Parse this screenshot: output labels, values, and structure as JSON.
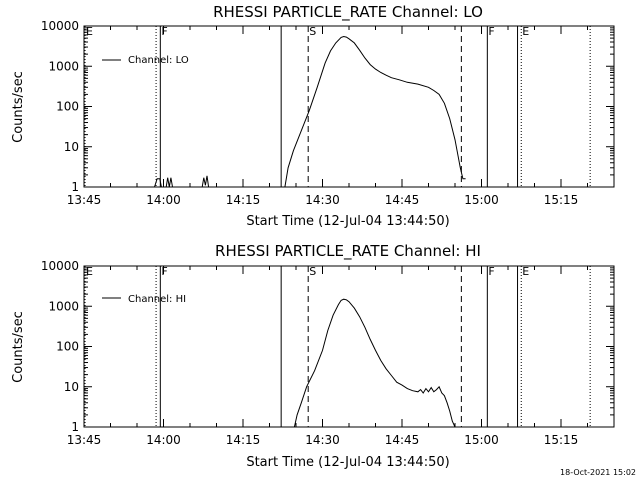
{
  "chart_data": [
    {
      "type": "line",
      "title": "RHESSI PARTICLE_RATE Channel: LO",
      "xlabel": "Start Time (12-Jul-04 13:44:50)",
      "ylabel": "Counts/sec",
      "yscale": "log",
      "ylim": [
        1,
        10000
      ],
      "xlim_minutes": [
        0,
        100
      ],
      "x_tick_labels": [
        "13:45",
        "14:00",
        "14:15",
        "14:30",
        "14:45",
        "15:00",
        "15:15"
      ],
      "x_tick_minutes": [
        0,
        15,
        30,
        45,
        60,
        75,
        90
      ],
      "y_tick_labels": [
        "1",
        "10",
        "100",
        "1000",
        "10000"
      ],
      "y_tick_values": [
        1,
        10,
        100,
        1000,
        10000
      ],
      "legend": {
        "label": "Channel: LO",
        "placement": "top-left"
      },
      "event_markers": [
        {
          "label": "E",
          "minute": 0.2,
          "style": "dotted"
        },
        {
          "label": "F",
          "minute": 14.4,
          "style": "solid"
        },
        {
          "label": "",
          "minute": 13.6,
          "style": "dotted"
        },
        {
          "label": "",
          "minute": 37.2,
          "style": "solid"
        },
        {
          "label": "S",
          "minute": 42.3,
          "style": "dashed"
        },
        {
          "label": "",
          "minute": 71.2,
          "style": "dashed"
        },
        {
          "label": "F",
          "minute": 76.1,
          "style": "solid"
        },
        {
          "label": "",
          "minute": 81.8,
          "style": "solid"
        },
        {
          "label": "E",
          "minute": 82.5,
          "style": "dotted"
        },
        {
          "label": "",
          "minute": 95.5,
          "style": "dotted"
        }
      ],
      "series": [
        {
          "name": "Channel: LO",
          "x": [
            0,
            13.3,
            13.8,
            14.3,
            14.6,
            15.5,
            15.8,
            16.1,
            16.4,
            16.7,
            17.5,
            22.3,
            22.6,
            22.9,
            23.2,
            23.5,
            37.9,
            38.5,
            39.5,
            41,
            42.5,
            44,
            45.5,
            46.5,
            47.5,
            48.5,
            49,
            49.5,
            50,
            51,
            52,
            53,
            54,
            55,
            56,
            57,
            58,
            59.5,
            61,
            63,
            65,
            66,
            67,
            68,
            69,
            70,
            71,
            71.5,
            72
          ],
          "y": [
            1,
            1,
            1.6,
            1.6,
            1,
            1,
            1.7,
            1,
            1.7,
            1,
            1,
            1,
            1.7,
            1.1,
            1.9,
            1,
            1,
            3,
            8,
            25,
            80,
            300,
            1200,
            2400,
            3800,
            5200,
            5500,
            5300,
            4800,
            3800,
            2500,
            1600,
            1100,
            850,
            700,
            600,
            520,
            460,
            400,
            360,
            300,
            250,
            200,
            120,
            50,
            15,
            3,
            1.6,
            1.6
          ]
        }
      ]
    },
    {
      "type": "line",
      "title": "RHESSI PARTICLE_RATE Channel: HI",
      "xlabel": "Start Time (12-Jul-04 13:44:50)",
      "ylabel": "Counts/sec",
      "yscale": "log",
      "ylim": [
        1,
        10000
      ],
      "xlim_minutes": [
        0,
        100
      ],
      "x_tick_labels": [
        "13:45",
        "14:00",
        "14:15",
        "14:30",
        "14:45",
        "15:00",
        "15:15"
      ],
      "x_tick_minutes": [
        0,
        15,
        30,
        45,
        60,
        75,
        90
      ],
      "y_tick_labels": [
        "1",
        "10",
        "100",
        "1000",
        "10000"
      ],
      "y_tick_values": [
        1,
        10,
        100,
        1000,
        10000
      ],
      "legend": {
        "label": "Channel: HI",
        "placement": "top-left"
      },
      "event_markers": [
        {
          "label": "E",
          "minute": 0.2,
          "style": "dotted"
        },
        {
          "label": "F",
          "minute": 14.4,
          "style": "solid"
        },
        {
          "label": "",
          "minute": 13.6,
          "style": "dotted"
        },
        {
          "label": "",
          "minute": 37.2,
          "style": "solid"
        },
        {
          "label": "S",
          "minute": 42.3,
          "style": "dashed"
        },
        {
          "label": "",
          "minute": 71.2,
          "style": "dashed"
        },
        {
          "label": "F",
          "minute": 76.1,
          "style": "solid"
        },
        {
          "label": "",
          "minute": 81.8,
          "style": "solid"
        },
        {
          "label": "E",
          "minute": 82.5,
          "style": "dotted"
        },
        {
          "label": "",
          "minute": 95.5,
          "style": "dotted"
        }
      ],
      "series": [
        {
          "name": "Channel: HI",
          "x": [
            39.7,
            40.2,
            41,
            42,
            43.5,
            45,
            46,
            47,
            48,
            48.5,
            49,
            49.5,
            50,
            51,
            52,
            53,
            54,
            55,
            56,
            57,
            58,
            59,
            60,
            61,
            62,
            63,
            63.5,
            64,
            64.5,
            65,
            65.5,
            66,
            66.5,
            67,
            67.5,
            68,
            68.5,
            69,
            69.5,
            70
          ],
          "y": [
            1,
            2,
            4,
            10,
            25,
            80,
            250,
            600,
            1100,
            1400,
            1500,
            1450,
            1300,
            900,
            550,
            300,
            150,
            80,
            45,
            28,
            19,
            13,
            11,
            9,
            8,
            7.5,
            8.5,
            7,
            9,
            7.5,
            9.5,
            7.5,
            8.5,
            10,
            7,
            6,
            4,
            2.5,
            1.4,
            1
          ]
        }
      ]
    }
  ],
  "timestamp": "18-Oct-2021 15:02"
}
